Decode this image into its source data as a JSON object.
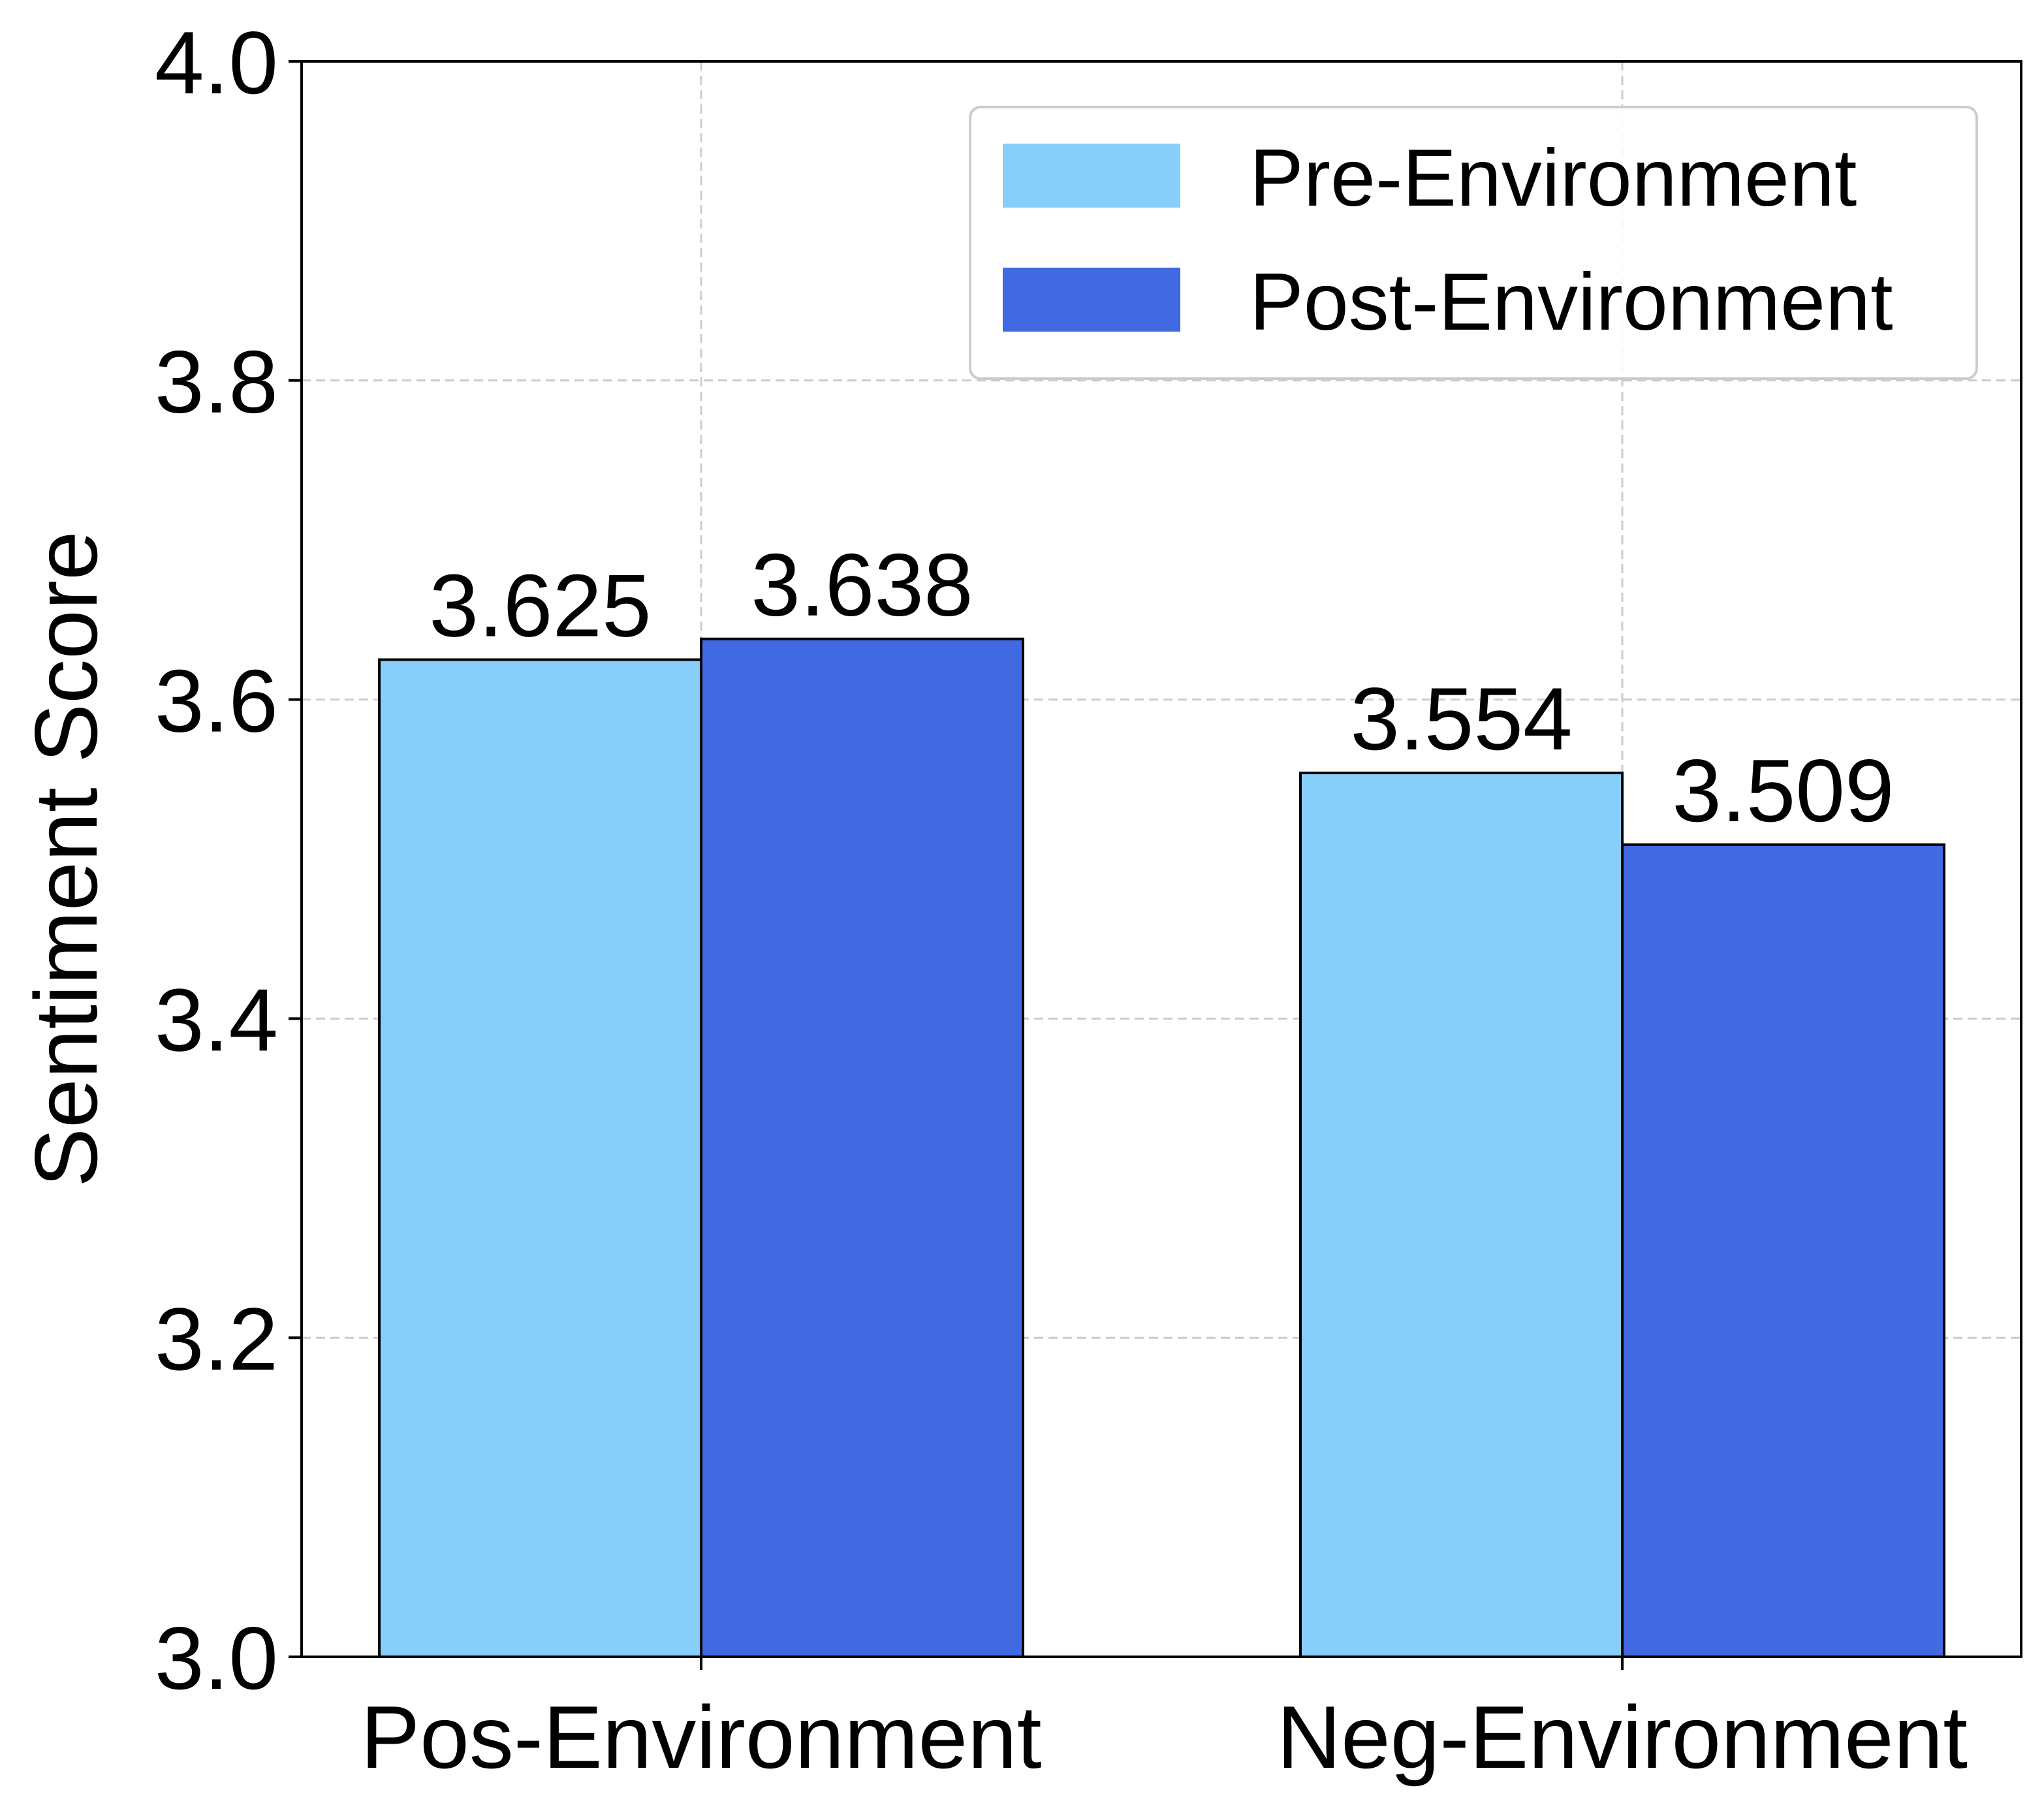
{
  "chart_data": {
    "type": "bar",
    "title": "",
    "xlabel": "",
    "ylabel": "Sentiment Score",
    "categories": [
      "Pos-Environment",
      "Neg-Environment"
    ],
    "series": [
      {
        "name": "Pre-Environment",
        "values": [
          3.625,
          3.554
        ],
        "labels": [
          "3.625",
          "3.554"
        ],
        "color": "#87CEFA"
      },
      {
        "name": "Post-Environment",
        "values": [
          3.638,
          3.509
        ],
        "labels": [
          "3.638",
          "3.509"
        ],
        "color": "#4169E1"
      }
    ],
    "ylim": [
      3.0,
      4.0
    ],
    "yticks": [
      3.0,
      3.2,
      3.4,
      3.6,
      3.8,
      4.0
    ],
    "ytick_labels": [
      "3.0",
      "3.2",
      "3.4",
      "3.6",
      "3.8",
      "4.0"
    ],
    "grid": true,
    "legend_position": "top-right",
    "bar_edge_color": "#000000",
    "grid_color": "#cccccc"
  }
}
